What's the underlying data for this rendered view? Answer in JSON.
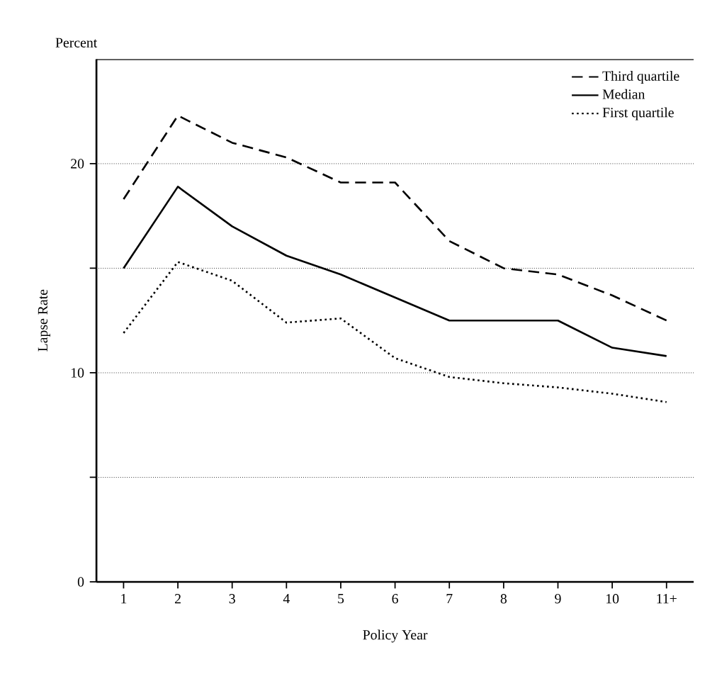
{
  "chart_data": {
    "type": "line",
    "categories": [
      "1",
      "2",
      "3",
      "4",
      "5",
      "6",
      "7",
      "8",
      "9",
      "10",
      "11+"
    ],
    "xlabel": "Policy Year",
    "ylabel": "Lapse Rate",
    "annotations": [
      "Percent"
    ],
    "ylim": [
      0,
      25
    ],
    "yticks": [
      0,
      {
        "value": 5,
        "label": null
      },
      10,
      {
        "value": 15,
        "label": null
      },
      20
    ],
    "grid": "y",
    "legend": "top right",
    "marker": "none",
    "series": [
      {
        "name": "Third quartile",
        "color": "#000000",
        "line_style": "dashed",
        "values": [
          18.3,
          22.3,
          21.0,
          20.3,
          19.1,
          19.1,
          16.3,
          15.0,
          14.7,
          13.7,
          12.5
        ]
      },
      {
        "name": "Median",
        "color": "#000000",
        "line_style": "solid",
        "values": [
          15.0,
          18.9,
          17.0,
          15.6,
          14.7,
          13.6,
          12.5,
          12.5,
          12.5,
          11.2,
          10.8
        ]
      },
      {
        "name": "First quartile",
        "color": "#000000",
        "line_style": "dotted",
        "values": [
          11.9,
          15.3,
          14.4,
          12.4,
          12.6,
          10.7,
          9.8,
          9.5,
          9.3,
          9.0,
          8.6
        ]
      }
    ]
  }
}
